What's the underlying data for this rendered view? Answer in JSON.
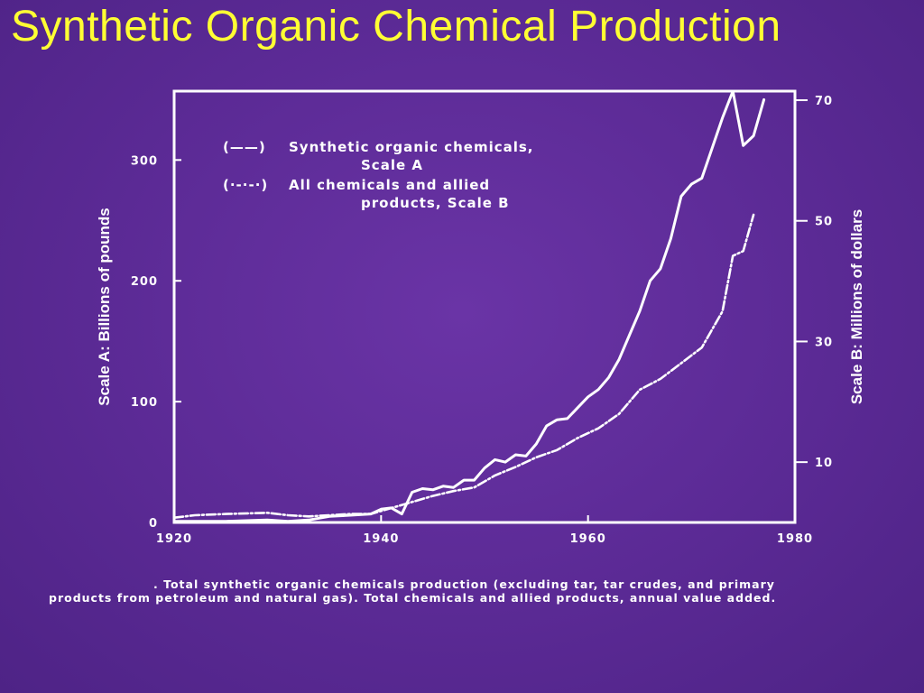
{
  "title": "Synthetic Organic Chemical Production",
  "chart_data": {
    "type": "line",
    "x_ticks": [
      "1920",
      "1940",
      "1960",
      "1980"
    ],
    "xlim": [
      1920,
      1980
    ],
    "left_axis": {
      "label": "Scale A: Billions of pounds",
      "ticks": [
        "0",
        "100",
        "200",
        "300"
      ],
      "ylim": [
        0,
        357
      ]
    },
    "right_axis": {
      "label": "Scale B: Millions of dollars",
      "ticks": [
        "10",
        "30",
        "50",
        "70"
      ],
      "ylim": [
        0,
        71.5
      ]
    },
    "legend": [
      {
        "symbol": "(——)",
        "line1": "Synthetic organic chemicals,",
        "line2": "Scale A"
      },
      {
        "symbol": "(·-·-·)",
        "line1": "All chemicals and allied",
        "line2": "products, Scale B"
      }
    ],
    "series": [
      {
        "name": "Synthetic organic chemicals",
        "axis": "A",
        "style": "solid",
        "x": [
          1920,
          1925,
          1929,
          1931,
          1933,
          1935,
          1937,
          1939,
          1940,
          1941,
          1942,
          1943,
          1944,
          1945,
          1946,
          1947,
          1948,
          1949,
          1950,
          1951,
          1952,
          1953,
          1954,
          1955,
          1956,
          1957,
          1958,
          1959,
          1960,
          1961,
          1962,
          1963,
          1964,
          1965,
          1966,
          1967,
          1968,
          1969,
          1970,
          1971,
          1972,
          1973,
          1974,
          1975,
          1976,
          1977
        ],
        "y": [
          1,
          1,
          2,
          1,
          2,
          5,
          6,
          7,
          11,
          12,
          7,
          25,
          28,
          27,
          30,
          29,
          35,
          35,
          45,
          52,
          50,
          56,
          55,
          65,
          80,
          85,
          86,
          95,
          104,
          110,
          120,
          135,
          155,
          175,
          200,
          210,
          235,
          270,
          280,
          285,
          310,
          335,
          357,
          312,
          320,
          350
        ]
      },
      {
        "name": "All chemicals and allied products",
        "axis": "B",
        "style": "dashdot",
        "x": [
          1920,
          1922,
          1925,
          1929,
          1931,
          1933,
          1935,
          1937,
          1939,
          1941,
          1943,
          1945,
          1947,
          1949,
          1951,
          1953,
          1955,
          1957,
          1959,
          1961,
          1963,
          1965,
          1967,
          1969,
          1971,
          1973,
          1974,
          1975,
          1976
        ],
        "y": [
          0.8,
          1.2,
          1.4,
          1.6,
          1.2,
          1.0,
          1.2,
          1.4,
          1.4,
          2.4,
          3.4,
          4.4,
          5.2,
          5.8,
          7.8,
          9.2,
          10.8,
          12.0,
          14.0,
          15.6,
          18.0,
          22.0,
          23.8,
          26.4,
          29.0,
          35.0,
          44.2,
          45.0,
          51.0
        ]
      }
    ],
    "caption_line1": ". Total synthetic organic chemicals production (excluding tar, tar crudes, and primary",
    "caption_line2": "products from petroleum and natural gas). Total chemicals and allied products, annual value added."
  }
}
